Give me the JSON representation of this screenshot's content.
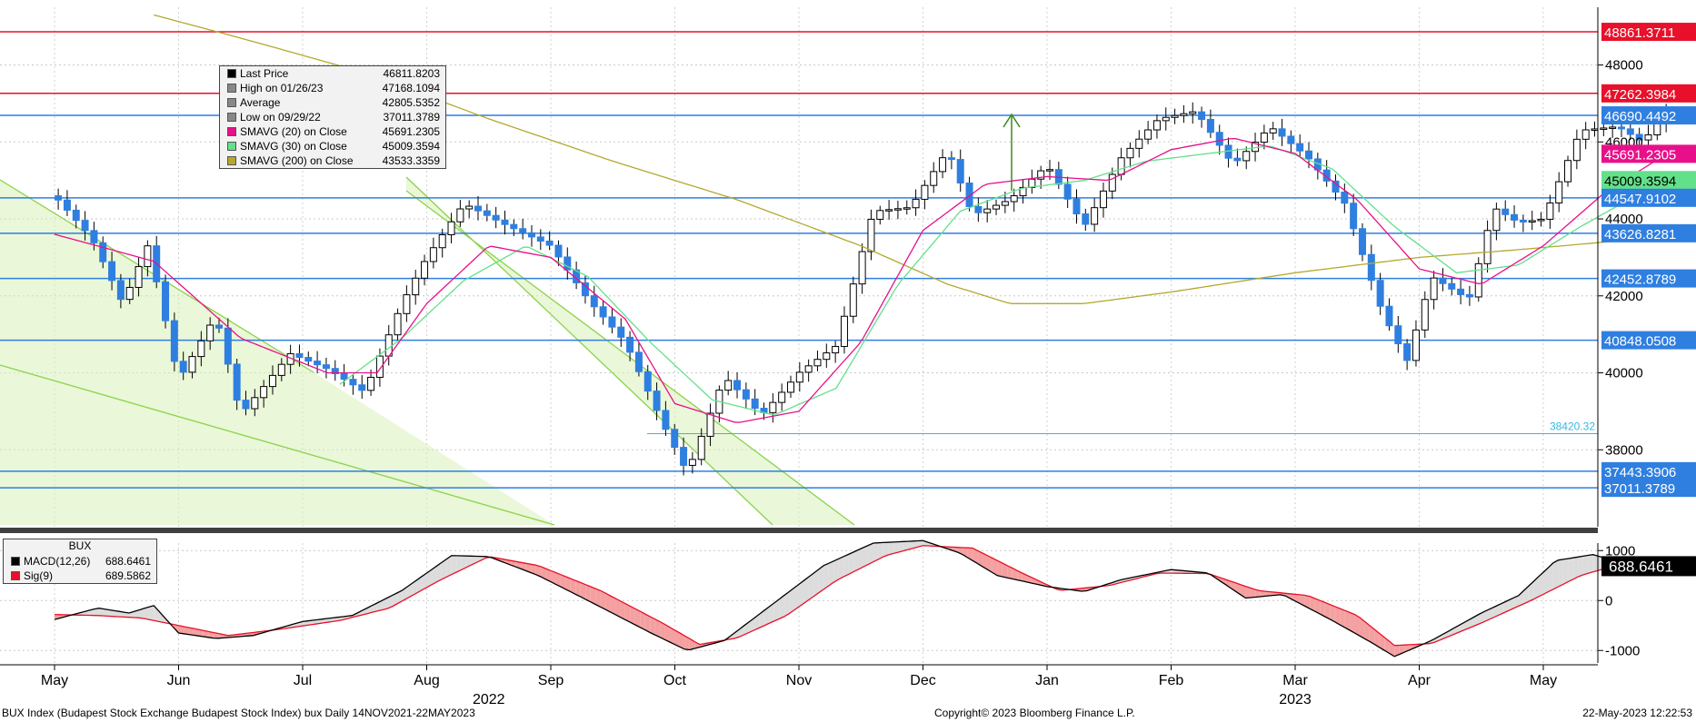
{
  "chart_data": [
    {
      "type": "candlestick",
      "title": "",
      "ylim": [
        36000,
        49500
      ],
      "y_ticks": [
        38000,
        40000,
        42000,
        44000,
        46000,
        48000
      ],
      "x_months": [
        "May",
        "Jun",
        "Jul",
        "Aug",
        "Sep",
        "Oct",
        "Nov",
        "Dec",
        "Jan",
        "Feb",
        "Mar",
        "Apr",
        "May"
      ],
      "x_years": [
        "2022",
        "2023"
      ],
      "legend": [
        {
          "name": "Last Price",
          "value": "46811.8203",
          "color": "#000000"
        },
        {
          "name": "High on 01/26/23",
          "value": "47168.1094",
          "color": "#888888"
        },
        {
          "name": "Average",
          "value": "42805.5352",
          "color": "#888888"
        },
        {
          "name": "Low on 09/29/22",
          "value": "37011.3789",
          "color": "#888888"
        },
        {
          "name": "SMAVG (20)  on Close",
          "value": "45691.2305",
          "color": "#e8108a"
        },
        {
          "name": "SMAVG (30)  on Close",
          "value": "45009.3594",
          "color": "#63e08a"
        },
        {
          "name": "SMAVG (200)  on Close",
          "value": "43533.3359",
          "color": "#b5a82d"
        }
      ],
      "horizontal_levels": [
        {
          "value": 48861.3711,
          "label": "48861.3711",
          "color": "#e8102a"
        },
        {
          "value": 47262.3984,
          "label": "47262.3984",
          "color": "#e8102a"
        },
        {
          "value": 46690.4492,
          "label": "46690.4492",
          "color": "#2f7fe0"
        },
        {
          "value": 45691.2305,
          "label": "45691.2305",
          "color": "#e8108a"
        },
        {
          "value": 45009.3594,
          "label": "45009.3594",
          "color": "#63e08a"
        },
        {
          "value": 44547.9102,
          "label": "44547.9102",
          "color": "#2f7fe0"
        },
        {
          "value": 43626.8281,
          "label": "43626.8281",
          "color": "#2f7fe0"
        },
        {
          "value": 42452.8789,
          "label": "42452.8789",
          "color": "#2f7fe0"
        },
        {
          "value": 40848.0508,
          "label": "40848.0508",
          "color": "#2f7fe0"
        },
        {
          "value": 37443.3906,
          "label": "37443.3906",
          "color": "#2f7fe0"
        },
        {
          "value": 37011.3789,
          "label": "37011.3789",
          "color": "#2f7fe0"
        }
      ],
      "thin_level": {
        "value": 38420.32,
        "label": "38420.32",
        "color": "#35b8e0"
      },
      "price_path": [
        [
          0.0,
          44600
        ],
        [
          0.3,
          43500
        ],
        [
          0.55,
          41800
        ],
        [
          0.75,
          43300
        ],
        [
          0.85,
          42000
        ],
        [
          1.0,
          39800
        ],
        [
          1.3,
          41500
        ],
        [
          1.5,
          38900
        ],
        [
          1.9,
          40500
        ],
        [
          2.2,
          40100
        ],
        [
          2.5,
          39500
        ],
        [
          2.8,
          41800
        ],
        [
          3.0,
          43000
        ],
        [
          3.3,
          44400
        ],
        [
          3.6,
          43900
        ],
        [
          4.0,
          43300
        ],
        [
          4.3,
          41900
        ],
        [
          4.6,
          40800
        ],
        [
          4.9,
          38700
        ],
        [
          5.1,
          37400
        ],
        [
          5.4,
          39900
        ],
        [
          5.7,
          38900
        ],
        [
          6.0,
          40000
        ],
        [
          6.3,
          40700
        ],
        [
          6.6,
          44200
        ],
        [
          6.9,
          44300
        ],
        [
          7.2,
          45800
        ],
        [
          7.4,
          44100
        ],
        [
          7.7,
          44500
        ],
        [
          8.0,
          45400
        ],
        [
          8.3,
          43800
        ],
        [
          8.6,
          45600
        ],
        [
          8.9,
          46600
        ],
        [
          9.2,
          46800
        ],
        [
          9.5,
          45400
        ],
        [
          9.8,
          46400
        ],
        [
          10.1,
          45600
        ],
        [
          10.4,
          44400
        ],
        [
          10.7,
          41600
        ],
        [
          10.9,
          40300
        ],
        [
          11.1,
          42500
        ],
        [
          11.4,
          41900
        ],
        [
          11.6,
          44300
        ],
        [
          11.8,
          43900
        ],
        [
          12.0,
          44000
        ],
        [
          12.3,
          46300
        ],
        [
          12.6,
          46400
        ],
        [
          12.8,
          46000
        ],
        [
          13.0,
          46800
        ]
      ],
      "sma20_path": [
        [
          0.0,
          43600
        ],
        [
          0.8,
          42900
        ],
        [
          1.5,
          40900
        ],
        [
          2.2,
          40000
        ],
        [
          2.6,
          40000
        ],
        [
          3.0,
          41800
        ],
        [
          3.5,
          43300
        ],
        [
          4.0,
          43000
        ],
        [
          4.6,
          41400
        ],
        [
          5.0,
          39200
        ],
        [
          5.5,
          38700
        ],
        [
          6.0,
          39000
        ],
        [
          6.5,
          40800
        ],
        [
          7.0,
          43700
        ],
        [
          7.5,
          44900
        ],
        [
          8.0,
          45100
        ],
        [
          8.5,
          45000
        ],
        [
          9.0,
          45800
        ],
        [
          9.5,
          46100
        ],
        [
          10.0,
          45700
        ],
        [
          10.5,
          44500
        ],
        [
          11.0,
          42700
        ],
        [
          11.5,
          42300
        ],
        [
          12.0,
          43300
        ],
        [
          12.5,
          44700
        ],
        [
          13.0,
          45700
        ]
      ],
      "sma30_path": [
        [
          2.3,
          39700
        ],
        [
          2.8,
          40900
        ],
        [
          3.3,
          42400
        ],
        [
          3.8,
          43300
        ],
        [
          4.3,
          42500
        ],
        [
          4.8,
          40800
        ],
        [
          5.3,
          39300
        ],
        [
          5.8,
          38900
        ],
        [
          6.3,
          39600
        ],
        [
          6.8,
          42300
        ],
        [
          7.3,
          44200
        ],
        [
          7.8,
          44800
        ],
        [
          8.3,
          45000
        ],
        [
          8.8,
          45500
        ],
        [
          9.3,
          45700
        ],
        [
          9.8,
          45900
        ],
        [
          10.3,
          45300
        ],
        [
          10.8,
          43800
        ],
        [
          11.3,
          42600
        ],
        [
          11.8,
          42800
        ],
        [
          12.3,
          43800
        ],
        [
          12.8,
          44700
        ],
        [
          13.0,
          45000
        ]
      ],
      "sma200_path": [
        [
          0.8,
          49300
        ],
        [
          1.5,
          48700
        ],
        [
          2.5,
          47800
        ],
        [
          3.5,
          46600
        ],
        [
          4.5,
          45500
        ],
        [
          5.5,
          44500
        ],
        [
          6.5,
          43300
        ],
        [
          7.2,
          42300
        ],
        [
          7.7,
          41800
        ],
        [
          8.3,
          41800
        ],
        [
          9.0,
          42100
        ],
        [
          10.0,
          42600
        ],
        [
          11.0,
          43000
        ],
        [
          11.8,
          43200
        ],
        [
          12.5,
          43400
        ],
        [
          13.0,
          43530
        ]
      ]
    },
    {
      "type": "line",
      "title": "BUX",
      "ylim": [
        -1250,
        1150
      ],
      "y_ticks": [
        -1000,
        0,
        1000
      ],
      "legend": [
        {
          "name": "MACD(12,26)",
          "value": "688.6461",
          "color": "#000000"
        },
        {
          "name": "Sig(9)",
          "value": "689.5862",
          "color": "#e8102a"
        }
      ],
      "last_value_label": "688.6461",
      "macd_path": [
        [
          0.0,
          -380
        ],
        [
          0.35,
          -150
        ],
        [
          0.6,
          -250
        ],
        [
          0.8,
          -100
        ],
        [
          1.0,
          -650
        ],
        [
          1.3,
          -760
        ],
        [
          1.6,
          -700
        ],
        [
          2.0,
          -420
        ],
        [
          2.4,
          -300
        ],
        [
          2.8,
          200
        ],
        [
          3.2,
          900
        ],
        [
          3.5,
          880
        ],
        [
          3.9,
          500
        ],
        [
          4.3,
          0
        ],
        [
          4.8,
          -640
        ],
        [
          5.1,
          -1000
        ],
        [
          5.4,
          -800
        ],
        [
          5.8,
          -50
        ],
        [
          6.2,
          700
        ],
        [
          6.6,
          1150
        ],
        [
          7.0,
          1200
        ],
        [
          7.3,
          950
        ],
        [
          7.6,
          500
        ],
        [
          8.0,
          280
        ],
        [
          8.3,
          180
        ],
        [
          8.6,
          420
        ],
        [
          9.0,
          620
        ],
        [
          9.3,
          550
        ],
        [
          9.6,
          50
        ],
        [
          9.9,
          120
        ],
        [
          10.3,
          -400
        ],
        [
          10.6,
          -820
        ],
        [
          10.8,
          -1120
        ],
        [
          11.1,
          -800
        ],
        [
          11.5,
          -250
        ],
        [
          11.8,
          100
        ],
        [
          12.1,
          800
        ],
        [
          12.4,
          920
        ],
        [
          12.7,
          700
        ],
        [
          13.0,
          688
        ]
      ],
      "signal_path": [
        [
          0.0,
          -280
        ],
        [
          0.35,
          -300
        ],
        [
          0.7,
          -350
        ],
        [
          1.0,
          -500
        ],
        [
          1.4,
          -700
        ],
        [
          1.8,
          -580
        ],
        [
          2.3,
          -400
        ],
        [
          2.7,
          -150
        ],
        [
          3.1,
          400
        ],
        [
          3.5,
          880
        ],
        [
          3.9,
          700
        ],
        [
          4.4,
          200
        ],
        [
          4.9,
          -450
        ],
        [
          5.2,
          -880
        ],
        [
          5.5,
          -750
        ],
        [
          5.9,
          -300
        ],
        [
          6.3,
          400
        ],
        [
          6.7,
          900
        ],
        [
          7.0,
          1100
        ],
        [
          7.4,
          1050
        ],
        [
          7.8,
          550
        ],
        [
          8.1,
          200
        ],
        [
          8.5,
          300
        ],
        [
          8.9,
          550
        ],
        [
          9.3,
          540
        ],
        [
          9.7,
          200
        ],
        [
          10.1,
          100
        ],
        [
          10.5,
          -300
        ],
        [
          10.8,
          -900
        ],
        [
          11.1,
          -860
        ],
        [
          11.5,
          -450
        ],
        [
          11.9,
          0
        ],
        [
          12.3,
          500
        ],
        [
          12.7,
          790
        ],
        [
          13.0,
          690
        ]
      ]
    }
  ],
  "footer": {
    "left": "BUX Index (Budapest Stock Exchange Budapest Stock Index) bux  Daily 14NOV2021-22MAY2023",
    "center": "Copyright© 2023 Bloomberg Finance L.P.",
    "right": "22-May-2023 12:22:53"
  }
}
